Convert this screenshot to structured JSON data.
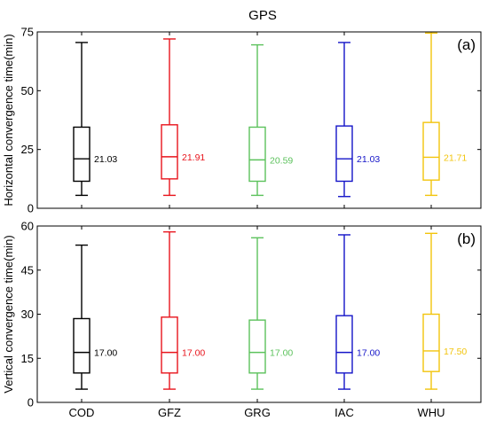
{
  "figure_title": "GPS",
  "chart_data": [
    {
      "type": "box",
      "panel_label": "(a)",
      "ylabel": "Horizontal convergence time(min)",
      "ylim": [
        0,
        75
      ],
      "yticks": [
        0,
        25,
        50,
        75
      ],
      "categories": [
        "COD",
        "GFZ",
        "GRG",
        "IAC",
        "WHU"
      ],
      "colors": [
        "#000000",
        "#e8141c",
        "#5cc25c",
        "#1414c8",
        "#f2c40c"
      ],
      "boxes": [
        {
          "category": "COD",
          "whisker_low": 5.5,
          "q1": 11.5,
          "median": 21.03,
          "q3": 34.5,
          "whisker_high": 70.5,
          "median_label": "21.03"
        },
        {
          "category": "GFZ",
          "whisker_low": 5.5,
          "q1": 12.5,
          "median": 21.91,
          "q3": 35.5,
          "whisker_high": 72,
          "median_label": "21.91"
        },
        {
          "category": "GRG",
          "whisker_low": 5.5,
          "q1": 11.5,
          "median": 20.59,
          "q3": 34.5,
          "whisker_high": 69.5,
          "median_label": "20.59"
        },
        {
          "category": "IAC",
          "whisker_low": 5,
          "q1": 11.5,
          "median": 21.03,
          "q3": 35,
          "whisker_high": 70.5,
          "median_label": "21.03"
        },
        {
          "category": "WHU",
          "whisker_low": 5.5,
          "q1": 12,
          "median": 21.71,
          "q3": 36.5,
          "whisker_high": 74.5,
          "median_label": "21.71"
        }
      ]
    },
    {
      "type": "box",
      "panel_label": "(b)",
      "ylabel": "Vertical  convergence time(min)",
      "ylim": [
        0,
        60
      ],
      "yticks": [
        0,
        15,
        30,
        45,
        60
      ],
      "categories": [
        "COD",
        "GFZ",
        "GRG",
        "IAC",
        "WHU"
      ],
      "colors": [
        "#000000",
        "#e8141c",
        "#5cc25c",
        "#1414c8",
        "#f2c40c"
      ],
      "boxes": [
        {
          "category": "COD",
          "whisker_low": 4.5,
          "q1": 10,
          "median": 17.0,
          "q3": 28.5,
          "whisker_high": 53.5,
          "median_label": "17.00"
        },
        {
          "category": "GFZ",
          "whisker_low": 4.5,
          "q1": 10,
          "median": 17.0,
          "q3": 29,
          "whisker_high": 58,
          "median_label": "17.00"
        },
        {
          "category": "GRG",
          "whisker_low": 4.5,
          "q1": 10,
          "median": 17.0,
          "q3": 28,
          "whisker_high": 56,
          "median_label": "17.00"
        },
        {
          "category": "IAC",
          "whisker_low": 4.5,
          "q1": 10,
          "median": 17.0,
          "q3": 29.5,
          "whisker_high": 57,
          "median_label": "17.00"
        },
        {
          "category": "WHU",
          "whisker_low": 4.5,
          "q1": 10.5,
          "median": 17.5,
          "q3": 30,
          "whisker_high": 57.5,
          "median_label": "17.50"
        }
      ]
    }
  ]
}
